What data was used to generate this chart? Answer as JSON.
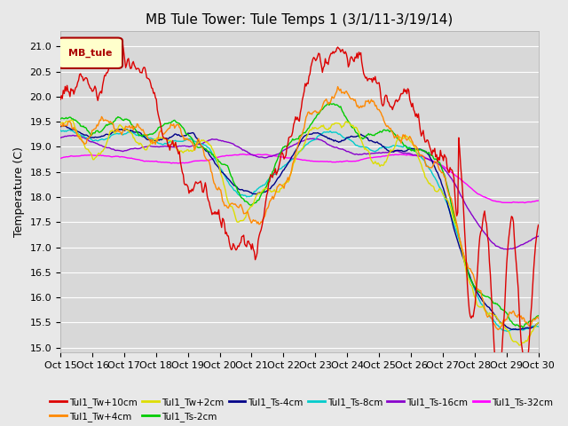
{
  "title": "MB Tule Tower: Tule Temps 1 (3/1/11-3/19/14)",
  "ylabel": "Temperature (C)",
  "ylim": [
    14.9,
    21.3
  ],
  "background_color": "#e8e8e8",
  "axes_bg_color": "#d8d8d8",
  "grid_color": "#ffffff",
  "xtick_labels": [
    "Oct 15",
    "Oct 16",
    "Oct 17",
    "Oct 18",
    "Oct 19",
    "Oct 20",
    "Oct 21",
    "Oct 22",
    "Oct 23",
    "Oct 24",
    "Oct 25",
    "Oct 26",
    "Oct 27",
    "Oct 28",
    "Oct 29",
    "Oct 30"
  ],
  "ytick_values": [
    15.0,
    15.5,
    16.0,
    16.5,
    17.0,
    17.5,
    18.0,
    18.5,
    19.0,
    19.5,
    20.0,
    20.5,
    21.0
  ],
  "series_colors": {
    "Tul1_Tw+10cm": "#dd0000",
    "Tul1_Tw+4cm": "#ff8800",
    "Tul1_Tw+2cm": "#dddd00",
    "Tul1_Ts-2cm": "#00cc00",
    "Tul1_Ts-4cm": "#000088",
    "Tul1_Ts-8cm": "#00cccc",
    "Tul1_Ts-16cm": "#8800cc",
    "Tul1_Ts-32cm": "#ff00ff"
  },
  "legend_box_facecolor": "#ffffcc",
  "legend_box_edgecolor": "#aa0000",
  "legend_label": "MB_tule",
  "title_fontsize": 11,
  "tick_fontsize": 8,
  "label_fontsize": 9
}
